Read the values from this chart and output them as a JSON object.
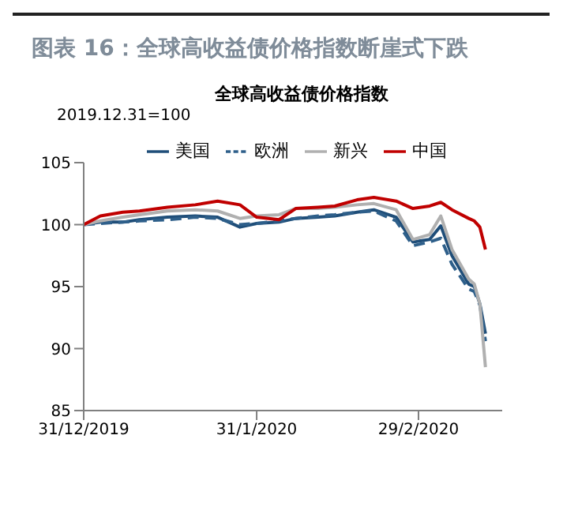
{
  "chart_data": {
    "type": "line",
    "title": "图表 16：全球高收益债价格指数断崖式下跌",
    "subtitle": "全球高收益债价格指数",
    "ylabel": "2019.12.31=100",
    "x": [
      "2019-12-31",
      "2020-01-03",
      "2020-01-07",
      "2020-01-10",
      "2020-01-15",
      "2020-01-20",
      "2020-01-24",
      "2020-01-28",
      "2020-01-31",
      "2020-02-04",
      "2020-02-07",
      "2020-02-11",
      "2020-02-14",
      "2020-02-18",
      "2020-02-21",
      "2020-02-25",
      "2020-02-28",
      "2020-03-02",
      "2020-03-04",
      "2020-03-06",
      "2020-03-09",
      "2020-03-10",
      "2020-03-11",
      "2020-03-12"
    ],
    "series": [
      {
        "name": "美国",
        "color": "#1f4e79",
        "line_style": "solid",
        "values": [
          100,
          100.2,
          100.2,
          100.4,
          100.6,
          100.7,
          100.6,
          99.8,
          100.1,
          100.2,
          100.5,
          100.6,
          100.7,
          101.0,
          101.2,
          100.6,
          98.6,
          98.8,
          99.9,
          97.5,
          95.2,
          95.0,
          93.6,
          91.2
        ]
      },
      {
        "name": "欧洲",
        "color": "#2e5f8a",
        "line_style": "dashed",
        "values": [
          100,
          100.1,
          100.2,
          100.3,
          100.4,
          100.6,
          100.5,
          100.0,
          100.1,
          100.3,
          100.5,
          100.7,
          100.8,
          101.0,
          101.1,
          100.3,
          98.3,
          98.6,
          98.9,
          96.8,
          94.8,
          94.6,
          93.5,
          90.6
        ]
      },
      {
        "name": "新兴",
        "color": "#b0b0b0",
        "line_style": "solid",
        "values": [
          100,
          100.3,
          100.6,
          100.8,
          101.1,
          101.2,
          101.1,
          100.5,
          100.7,
          100.8,
          101.3,
          101.3,
          101.4,
          101.6,
          101.7,
          101.2,
          98.8,
          99.2,
          100.7,
          98.0,
          95.6,
          95.2,
          93.6,
          88.5
        ]
      },
      {
        "name": "中国",
        "color": "#c00000",
        "line_style": "solid",
        "values": [
          100,
          100.7,
          101.0,
          101.1,
          101.4,
          101.6,
          101.9,
          101.6,
          100.6,
          100.4,
          101.3,
          101.4,
          101.5,
          102.0,
          102.2,
          101.9,
          101.3,
          101.5,
          101.8,
          101.2,
          100.5,
          100.3,
          99.8,
          98.0
        ]
      }
    ],
    "xlim": [
      "2019-12-31",
      "2020-03-15"
    ],
    "xticks": [
      {
        "value": "2019-12-31",
        "label": "31/12/2019"
      },
      {
        "value": "2020-01-31",
        "label": "31/1/2020"
      },
      {
        "value": "2020-02-29",
        "label": "29/2/2020"
      }
    ],
    "ylim": [
      85,
      105
    ],
    "yticks": [
      85,
      90,
      95,
      100,
      105
    ],
    "legend": "top",
    "marker": "none"
  }
}
